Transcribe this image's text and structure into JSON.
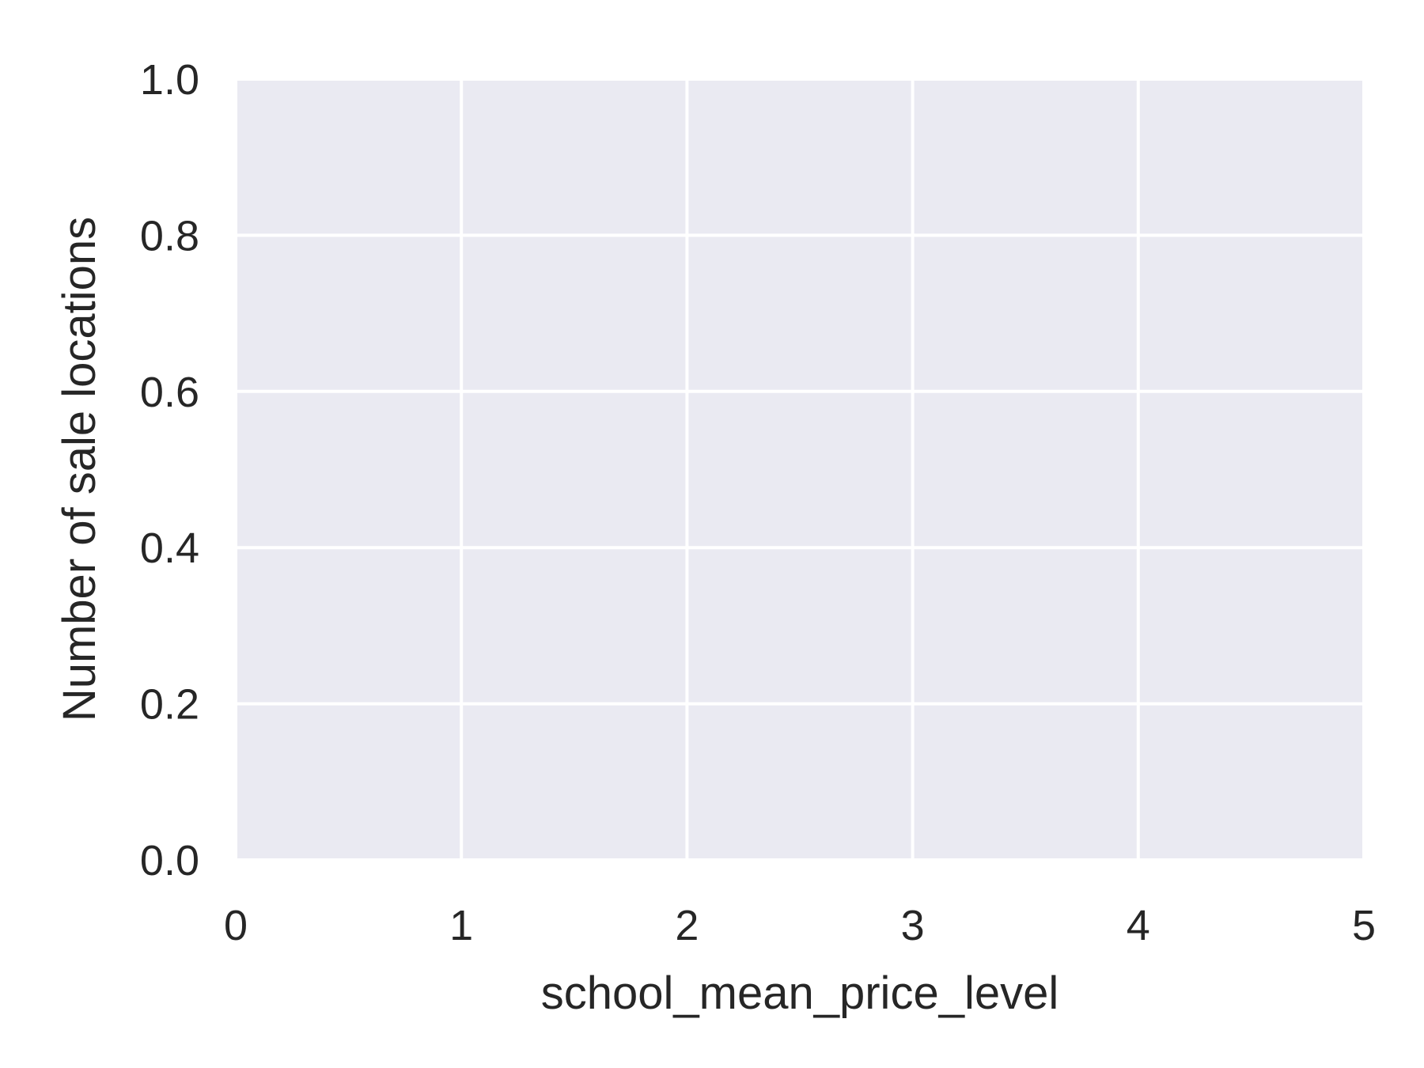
{
  "chart_data": {
    "type": "bar",
    "title": "",
    "xlabel": "school_mean_price_level",
    "ylabel": "Number of sale locations",
    "xlim": [
      0,
      5
    ],
    "ylim": [
      0.0,
      1.0
    ],
    "xticks": [
      0,
      1,
      2,
      3,
      4,
      5
    ],
    "xtick_labels": [
      "0",
      "1",
      "2",
      "3",
      "4",
      "5"
    ],
    "yticks": [
      0.0,
      0.2,
      0.4,
      0.6,
      0.8,
      1.0
    ],
    "ytick_labels": [
      "0.0",
      "0.2",
      "0.4",
      "0.6",
      "0.8",
      "1.0"
    ],
    "categories": [],
    "values": [],
    "grid": true,
    "legend": "none",
    "colors": {
      "plot_background": "#eaeaf2",
      "grid": "#ffffff",
      "text": "#262626"
    }
  }
}
